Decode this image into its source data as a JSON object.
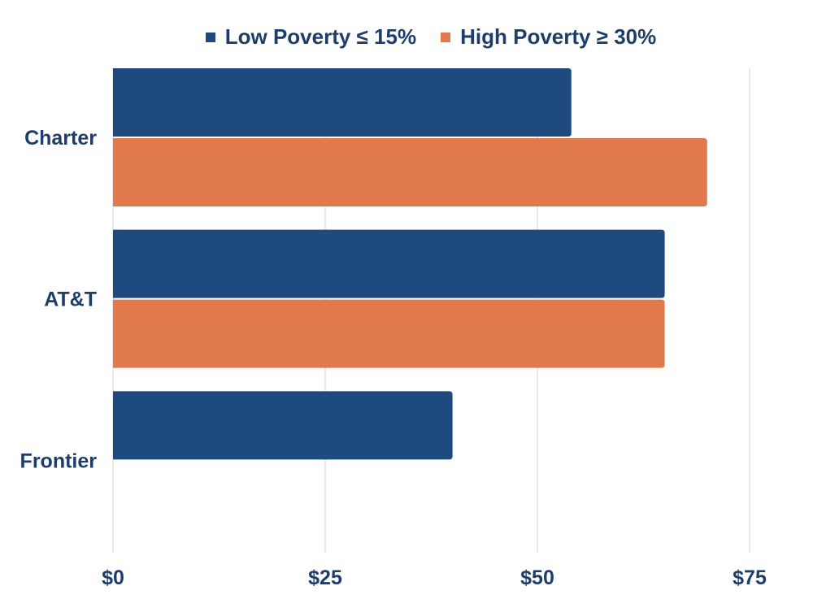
{
  "chart_data": {
    "type": "bar",
    "orientation": "horizontal",
    "categories": [
      "Charter",
      "AT&T",
      "Frontier"
    ],
    "series": [
      {
        "name": "Low Poverty ≤ 15%",
        "values": [
          54,
          65,
          40
        ],
        "color": "#1f4a80"
      },
      {
        "name": "High Poverty ≥ 30%",
        "values": [
          70,
          65,
          null
        ],
        "color": "#e07a4c"
      }
    ],
    "x_ticks": [
      "$0",
      "$25",
      "$50",
      "$75"
    ],
    "x_tick_values": [
      0,
      25,
      50,
      75
    ],
    "xlim": [
      0,
      75
    ],
    "grid": true,
    "legend": "top"
  }
}
